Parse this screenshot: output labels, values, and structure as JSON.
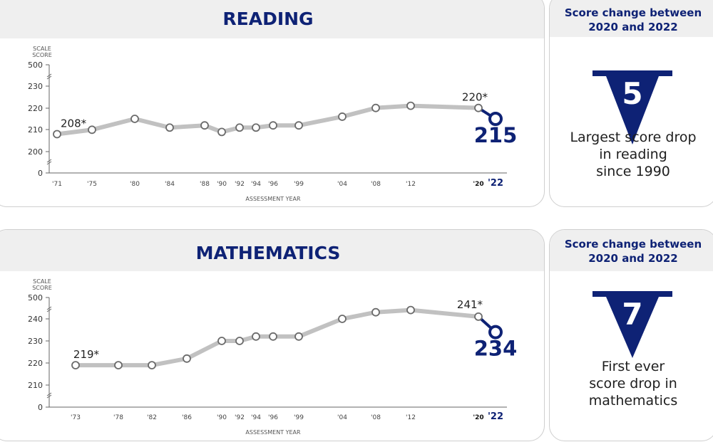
{
  "chart_data": [
    {
      "type": "line",
      "title": "READING",
      "ylabel": "SCALE SCORE",
      "xlabel": "ASSESSMENT YEAR",
      "y_ticks": [
        "0",
        "200",
        "210",
        "220",
        "230",
        "500"
      ],
      "ylim": [
        195,
        235
      ],
      "axis_break": true,
      "x": [
        "'71",
        "'75",
        "'80",
        "'84",
        "'88",
        "'90",
        "'92",
        "'94",
        "'96",
        "'99",
        "'04",
        "'08",
        "'12",
        "'20",
        "'22"
      ],
      "values": [
        208,
        210,
        215,
        211,
        212,
        209,
        211,
        211,
        212,
        212,
        216,
        220,
        221,
        220,
        215
      ],
      "annotations": [
        {
          "index": 0,
          "text": "208*"
        },
        {
          "index": 13,
          "text": "220*"
        },
        {
          "index": 14,
          "text": "215"
        }
      ],
      "line_color": "#c1c1c1",
      "highlight_color": "#0e2275",
      "grid": false,
      "legend": "none"
    },
    {
      "type": "line",
      "title": "MATHEMATICS",
      "ylabel": "SCALE SCORE",
      "xlabel": "ASSESSMENT YEAR",
      "y_ticks": [
        "0",
        "210",
        "220",
        "230",
        "240",
        "500"
      ],
      "ylim": [
        205,
        245
      ],
      "axis_break": true,
      "x": [
        "'73",
        "'78",
        "'82",
        "'86",
        "'90",
        "'92",
        "'94",
        "'96",
        "'99",
        "'04",
        "'08",
        "'12",
        "'20",
        "'22"
      ],
      "values": [
        219,
        219,
        219,
        222,
        230,
        230,
        232,
        232,
        232,
        240,
        243,
        244,
        241,
        234
      ],
      "annotations": [
        {
          "index": 0,
          "text": "219*"
        },
        {
          "index": 12,
          "text": "241*"
        },
        {
          "index": 13,
          "text": "234"
        }
      ],
      "line_color": "#c1c1c1",
      "highlight_color": "#0e2275",
      "grid": false,
      "legend": "none"
    }
  ],
  "sidebars": [
    {
      "title": "Score change between 2020 and 2022",
      "drop": "5",
      "icon": "down-arrow-icon",
      "text_lines": [
        "Largest score drop",
        "in reading",
        "since 1990"
      ]
    },
    {
      "title": "Score change between 2020 and 2022",
      "drop": "7",
      "icon": "down-arrow-icon",
      "text_lines": [
        "First ever",
        "score drop in",
        "mathematics"
      ]
    }
  ],
  "colors": {
    "accent": "#0e2275",
    "header_bg": "#efefef",
    "line": "#c1c1c1",
    "axis": "#666666"
  }
}
